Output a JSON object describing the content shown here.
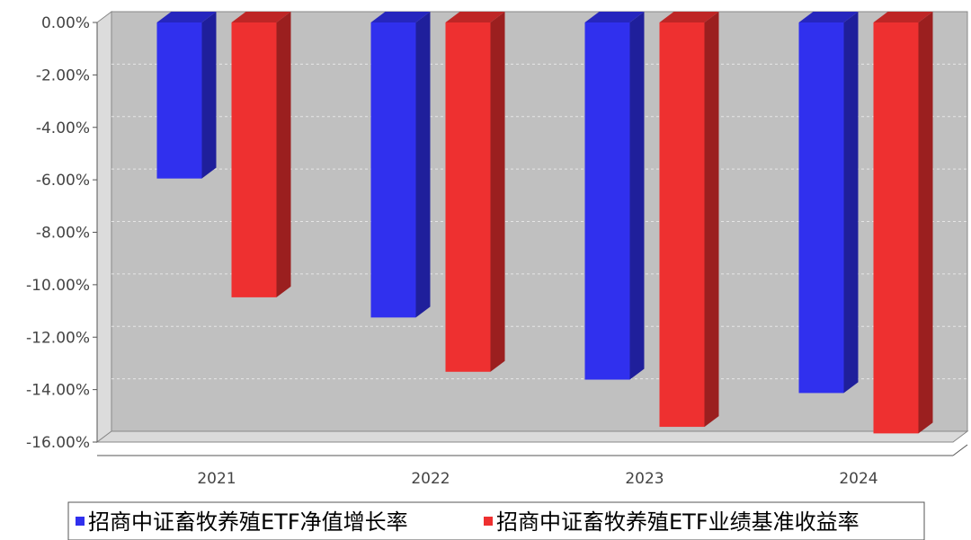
{
  "chart_data": {
    "type": "bar",
    "title": "",
    "xlabel": "",
    "ylabel": "",
    "categories": [
      "2021",
      "2022",
      "2023",
      "2024"
    ],
    "series": [
      {
        "name": "招商中证畜牧养殖ETF净值增长率",
        "color": "#3030EE",
        "values": [
          -5.95,
          -11.25,
          -13.62,
          -14.13
        ]
      },
      {
        "name": "招商中证畜牧养殖ETF业绩基准收益率",
        "color": "#EE3030",
        "values": [
          -10.48,
          -13.32,
          -15.42,
          -15.67
        ]
      }
    ],
    "y_ticks": [
      "0.00%",
      "-2.00%",
      "-4.00%",
      "-6.00%",
      "-8.00%",
      "-10.00%",
      "-12.00%",
      "-14.00%",
      "-16.00%"
    ],
    "ylim": [
      -16,
      0
    ],
    "grid": true,
    "legend_position": "bottom"
  }
}
